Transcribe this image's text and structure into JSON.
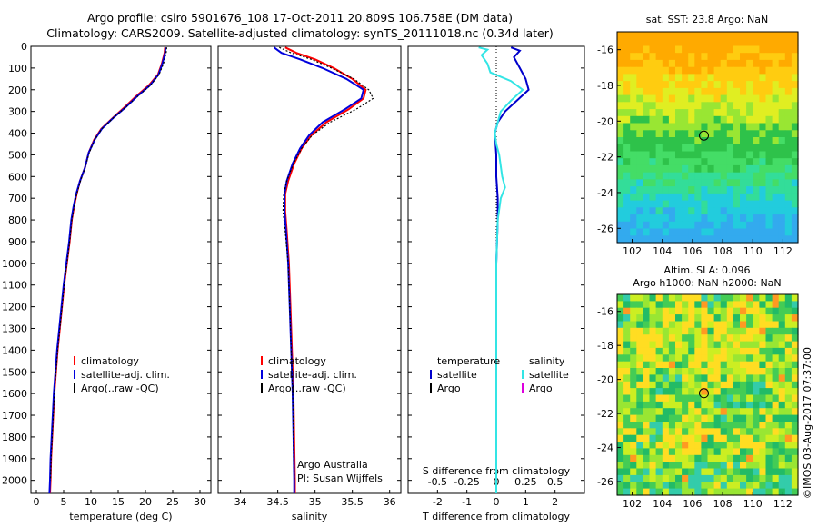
{
  "header": {
    "title_line1": "Argo profile: csiro 5901676_108 17-Oct-2011 20.809S 106.758E (DM data)",
    "title_line2": "Climatology: CARS2009. Satellite-adjusted climatology: synTS_20111018.nc (0.34d later)"
  },
  "chart_data": [
    {
      "id": "temperature",
      "type": "line",
      "xlabel": "temperature (deg C)",
      "xlim": [
        -1,
        32
      ],
      "xticks": [
        0,
        5,
        10,
        15,
        20,
        25,
        30
      ],
      "ylim": [
        0,
        2060
      ],
      "yticks": [
        0,
        100,
        200,
        300,
        400,
        500,
        600,
        700,
        800,
        900,
        1000,
        1100,
        1200,
        1300,
        1400,
        1500,
        1600,
        1700,
        1800,
        1900,
        2000
      ],
      "y_reversed": true,
      "series": [
        {
          "name": "climatology",
          "color": "#ff0000",
          "points": [
            [
              23.6,
              5
            ],
            [
              23.5,
              30
            ],
            [
              23.0,
              80
            ],
            [
              22.3,
              130
            ],
            [
              20.6,
              180
            ],
            [
              18.3,
              230
            ],
            [
              16.2,
              280
            ],
            [
              14.0,
              330
            ],
            [
              11.9,
              380
            ],
            [
              10.6,
              430
            ],
            [
              9.6,
              490
            ],
            [
              8.9,
              560
            ],
            [
              8.0,
              620
            ],
            [
              7.4,
              680
            ],
            [
              6.9,
              740
            ],
            [
              6.5,
              800
            ],
            [
              6.1,
              900
            ],
            [
              5.6,
              1000
            ],
            [
              5.1,
              1100
            ],
            [
              4.7,
              1200
            ],
            [
              4.3,
              1300
            ],
            [
              3.9,
              1400
            ],
            [
              3.6,
              1500
            ],
            [
              3.3,
              1600
            ],
            [
              3.1,
              1700
            ],
            [
              2.9,
              1800
            ],
            [
              2.7,
              1900
            ],
            [
              2.6,
              2000
            ],
            [
              2.5,
              2060
            ]
          ]
        },
        {
          "name": "satellite-adj. clim.",
          "color": "#0000dd",
          "points": [
            [
              23.7,
              5
            ],
            [
              23.6,
              30
            ],
            [
              23.1,
              80
            ],
            [
              22.4,
              130
            ],
            [
              20.8,
              180
            ],
            [
              18.5,
              230
            ],
            [
              16.4,
              280
            ],
            [
              14.1,
              330
            ],
            [
              12.0,
              380
            ],
            [
              10.7,
              430
            ],
            [
              9.6,
              490
            ],
            [
              8.9,
              560
            ],
            [
              8.0,
              620
            ],
            [
              7.3,
              680
            ],
            [
              6.8,
              740
            ],
            [
              6.4,
              800
            ],
            [
              6.0,
              900
            ],
            [
              5.5,
              1000
            ],
            [
              5.0,
              1100
            ],
            [
              4.6,
              1200
            ],
            [
              4.2,
              1300
            ],
            [
              3.8,
              1400
            ],
            [
              3.5,
              1500
            ],
            [
              3.2,
              1600
            ],
            [
              3.0,
              1700
            ],
            [
              2.8,
              1800
            ],
            [
              2.6,
              1900
            ],
            [
              2.5,
              2000
            ],
            [
              2.4,
              2060
            ]
          ]
        },
        {
          "name": "Argo(..raw -QC)",
          "color": "#000000",
          "dotted": true,
          "points": [
            [
              23.9,
              5
            ],
            [
              23.8,
              30
            ],
            [
              23.3,
              80
            ],
            [
              22.5,
              130
            ],
            [
              20.9,
              180
            ],
            [
              18.6,
              230
            ],
            [
              16.4,
              280
            ],
            [
              14.1,
              330
            ],
            [
              12.0,
              380
            ],
            [
              10.7,
              430
            ],
            [
              9.7,
              490
            ],
            [
              8.9,
              560
            ],
            [
              8.1,
              620
            ],
            [
              7.4,
              680
            ],
            [
              6.9,
              740
            ],
            [
              6.5,
              800
            ],
            [
              6.1,
              900
            ],
            [
              5.6,
              1000
            ],
            [
              5.1,
              1100
            ],
            [
              4.7,
              1200
            ],
            [
              4.3,
              1300
            ],
            [
              3.9,
              1400
            ],
            [
              3.6,
              1500
            ],
            [
              3.3,
              1600
            ],
            [
              3.1,
              1700
            ],
            [
              2.9,
              1800
            ],
            [
              2.7,
              1900
            ],
            [
              2.6,
              2000
            ]
          ]
        }
      ],
      "legend": [
        "climatology",
        "satellite-adj. clim.",
        "Argo(..raw -QC)"
      ]
    },
    {
      "id": "salinity",
      "type": "line",
      "xlabel": "salinity",
      "xlim": [
        33.7,
        36.15
      ],
      "xticks": [
        34,
        34.5,
        35,
        35.5,
        36
      ],
      "ylim": [
        0,
        2060
      ],
      "y_reversed": true,
      "series": [
        {
          "name": "climatology",
          "color": "#ff0000",
          "points": [
            [
              34.6,
              5
            ],
            [
              34.75,
              30
            ],
            [
              35.0,
              60
            ],
            [
              35.25,
              100
            ],
            [
              35.5,
              150
            ],
            [
              35.68,
              200
            ],
            [
              35.65,
              240
            ],
            [
              35.45,
              290
            ],
            [
              35.15,
              350
            ],
            [
              34.95,
              410
            ],
            [
              34.82,
              470
            ],
            [
              34.72,
              540
            ],
            [
              34.64,
              620
            ],
            [
              34.6,
              680
            ],
            [
              34.6,
              760
            ],
            [
              34.62,
              850
            ],
            [
              34.65,
              1000
            ],
            [
              34.67,
              1200
            ],
            [
              34.69,
              1400
            ],
            [
              34.71,
              1600
            ],
            [
              34.72,
              1800
            ],
            [
              34.73,
              2000
            ],
            [
              34.73,
              2060
            ]
          ]
        },
        {
          "name": "satellite-adj. clim.",
          "color": "#0000dd",
          "points": [
            [
              34.45,
              5
            ],
            [
              34.55,
              30
            ],
            [
              34.8,
              60
            ],
            [
              35.1,
              100
            ],
            [
              35.42,
              150
            ],
            [
              35.65,
              200
            ],
            [
              35.62,
              240
            ],
            [
              35.4,
              290
            ],
            [
              35.1,
              350
            ],
            [
              34.92,
              410
            ],
            [
              34.8,
              470
            ],
            [
              34.7,
              540
            ],
            [
              34.62,
              620
            ],
            [
              34.59,
              680
            ],
            [
              34.59,
              760
            ],
            [
              34.61,
              850
            ],
            [
              34.64,
              1000
            ],
            [
              34.66,
              1200
            ],
            [
              34.68,
              1400
            ],
            [
              34.7,
              1600
            ],
            [
              34.71,
              1800
            ],
            [
              34.72,
              2000
            ],
            [
              34.72,
              2060
            ]
          ]
        },
        {
          "name": "Argo(..raw -QC)",
          "color": "#000000",
          "dotted": true,
          "points": [
            [
              34.52,
              5
            ],
            [
              34.68,
              30
            ],
            [
              34.95,
              60
            ],
            [
              35.22,
              100
            ],
            [
              35.52,
              150
            ],
            [
              35.72,
              200
            ],
            [
              35.78,
              240
            ],
            [
              35.55,
              290
            ],
            [
              35.2,
              350
            ],
            [
              34.96,
              410
            ],
            [
              34.82,
              470
            ],
            [
              34.71,
              540
            ],
            [
              34.62,
              620
            ],
            [
              34.58,
              680
            ],
            [
              34.57,
              760
            ],
            [
              34.6,
              850
            ],
            [
              34.64,
              1000
            ],
            [
              34.66,
              1200
            ],
            [
              34.68,
              1400
            ],
            [
              34.7,
              1600
            ],
            [
              34.71,
              1800
            ],
            [
              34.72,
              2000
            ]
          ]
        }
      ],
      "legend": [
        "climatology",
        "satellite-adj. clim.",
        "Argo(..raw -QC)"
      ],
      "note_line1": "Argo Australia",
      "note_line2": "PI: Susan Wijffels"
    },
    {
      "id": "difference",
      "type": "line",
      "xlabel": "T difference from climatology",
      "xlim": [
        -3.0,
        3.0
      ],
      "xticks": [
        -2,
        -1,
        0,
        1,
        2
      ],
      "top_label": "S difference from climatology",
      "top_ticks": [
        "-0.5",
        "-0.25",
        "0",
        "0.25",
        "0.5"
      ],
      "top_tick_values": [
        -2,
        -1,
        0,
        1,
        2
      ],
      "ylim": [
        0,
        2060
      ],
      "y_reversed": true,
      "series": [
        {
          "name": "temperature satellite",
          "color": "#0000cc",
          "points": [
            [
              0.5,
              5
            ],
            [
              0.8,
              20
            ],
            [
              0.6,
              50
            ],
            [
              0.8,
              100
            ],
            [
              1.0,
              150
            ],
            [
              1.1,
              200
            ],
            [
              0.7,
              250
            ],
            [
              0.3,
              300
            ],
            [
              0.05,
              350
            ],
            [
              -0.05,
              400
            ],
            [
              0.0,
              500
            ],
            [
              0.0,
              600
            ],
            [
              0.05,
              700
            ],
            [
              0.05,
              800
            ],
            [
              0.0,
              1000
            ],
            [
              0.0,
              1200
            ],
            [
              0.0,
              1500
            ],
            [
              0.0,
              2000
            ],
            [
              0.0,
              2060
            ]
          ]
        },
        {
          "name": "salinity satellite",
          "color": "#33e5e5",
          "points": [
            [
              -0.6,
              5
            ],
            [
              -0.3,
              15
            ],
            [
              -0.5,
              40
            ],
            [
              -0.3,
              80
            ],
            [
              -0.2,
              120
            ],
            [
              0.5,
              160
            ],
            [
              0.9,
              200
            ],
            [
              0.5,
              250
            ],
            [
              0.15,
              300
            ],
            [
              0.05,
              350
            ],
            [
              -0.05,
              400
            ],
            [
              0.0,
              450
            ],
            [
              0.1,
              500
            ],
            [
              0.2,
              600
            ],
            [
              0.3,
              650
            ],
            [
              0.15,
              700
            ],
            [
              0.05,
              800
            ],
            [
              0.0,
              1000
            ],
            [
              0.0,
              1500
            ],
            [
              0.0,
              2000
            ],
            [
              0.0,
              2060
            ]
          ]
        }
      ],
      "legend_col1_title": "temperature",
      "legend_col1": [
        "satellite",
        "Argo"
      ],
      "legend_col2_title": "salinity",
      "legend_col2": [
        "satellite",
        "Argo"
      ]
    }
  ],
  "maps": {
    "sst_title": "sat. SST: 23.8  Argo: NaN",
    "sla_title_line1": "Altim. SLA: 0.096",
    "sla_title_line2": "Argo h1000: NaN h2000: NaN",
    "lon_ticks": [
      "102",
      "104",
      "106",
      "108",
      "110",
      "112"
    ],
    "lat_ticks": [
      "-16",
      "-18",
      "-20",
      "-22",
      "-24",
      "-26"
    ]
  },
  "credit": "©IMOS 03-Aug-2017 07:37:00"
}
